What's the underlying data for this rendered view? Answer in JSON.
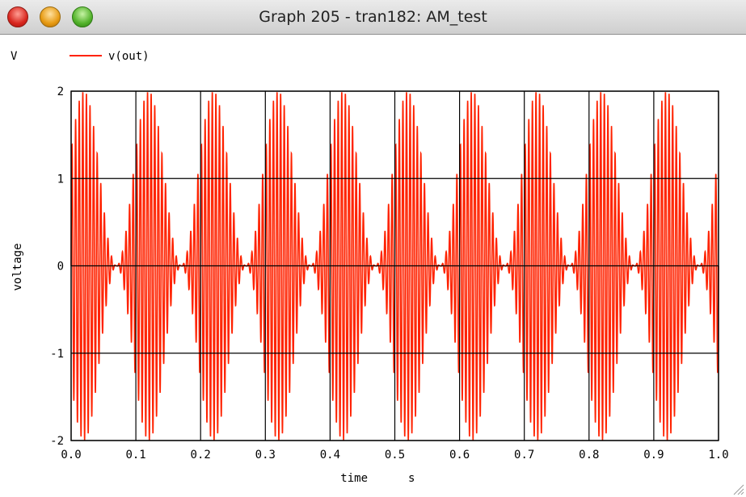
{
  "window": {
    "title": "Graph 205 - tran182: AM_test"
  },
  "colors": {
    "series": "#ff2200",
    "grid": "#000000",
    "background": "#ffffff"
  },
  "icons": {
    "close": "close-button-icon",
    "minimize": "minimize-button-icon",
    "zoom": "zoom-button-icon",
    "resize": "resize-grip-icon"
  },
  "chart_data": {
    "type": "line",
    "yunit": "V",
    "xlabel": "time",
    "xunit": "s",
    "ylabel": "voltage",
    "xlim": [
      0.0,
      1.0
    ],
    "ylim": [
      -2,
      2
    ],
    "xticks": [
      0.0,
      0.1,
      0.2,
      0.3,
      0.4,
      0.5,
      0.6,
      0.7,
      0.8,
      0.9,
      1.0
    ],
    "xtick_labels": [
      "0.0",
      "0.1",
      "0.2",
      "0.3",
      "0.4",
      "0.5",
      "0.6",
      "0.7",
      "0.8",
      "0.9",
      "1.0"
    ],
    "yticks": [
      -2,
      -1,
      0,
      1,
      2
    ],
    "ytick_labels": [
      "-2",
      "-1",
      "0",
      "1",
      "2"
    ],
    "grid": true,
    "legend": "top-left",
    "series": [
      {
        "name": "v(out)",
        "color": "#ff2200",
        "description": "AM signal: carrier amplitude-modulated at 10 Hz envelope",
        "envelope_peak_times": [
          0.02,
          0.12,
          0.22,
          0.32,
          0.42,
          0.52,
          0.62,
          0.72,
          0.82,
          0.92
        ],
        "envelope_period": 0.1,
        "envelope_peak": 2.0,
        "envelope_min": 0.0,
        "carrier_cycles_per_envelope": 18
      }
    ]
  }
}
